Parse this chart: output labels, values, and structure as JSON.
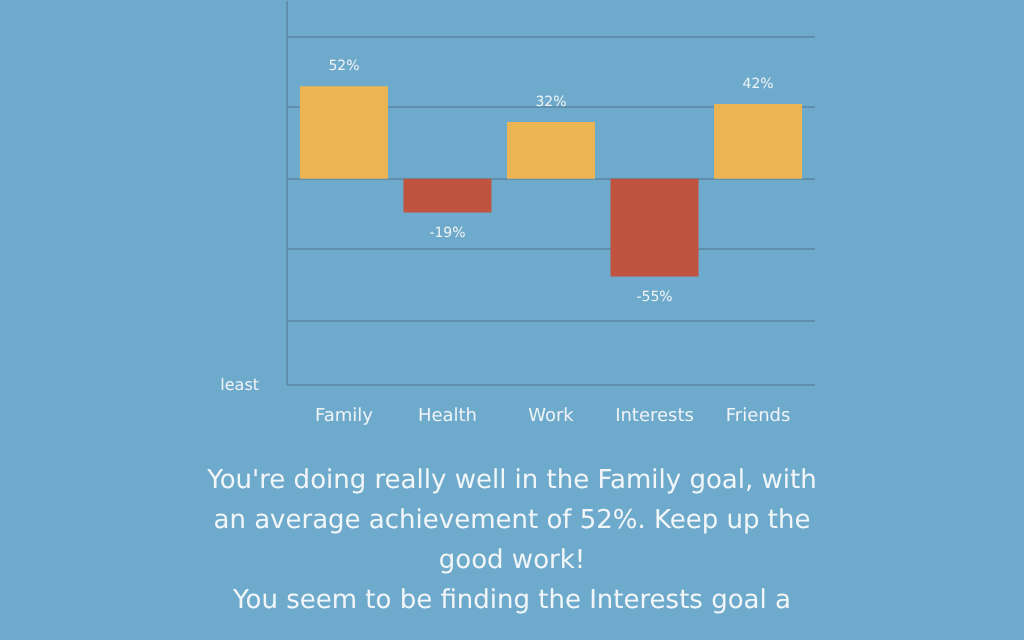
{
  "chart_data": {
    "type": "bar",
    "categories": [
      "Family",
      "Health",
      "Work",
      "Interests",
      "Friends"
    ],
    "values": [
      52,
      -19,
      32,
      -55,
      42
    ],
    "colors": [
      "#ecb553",
      "#c0533f",
      "#ecb553",
      "#c0533f",
      "#ecb553"
    ],
    "value_labels": [
      "52%",
      "-19%",
      "32%",
      "-55%",
      "42%"
    ],
    "ylim": [
      -116,
      100
    ],
    "yticks": [
      {
        "value": -80,
        "label": null
      },
      {
        "value": -40,
        "label": null
      },
      {
        "value": 0,
        "label": null
      },
      {
        "value": 40,
        "label": null
      },
      {
        "value": 80,
        "label": null
      }
    ],
    "grid": "y",
    "annotations": [
      "least",
      "You're doing really well in the Family goal, with an average achievement of 52%. Keep up the good work!",
      "You seem to be finding the Interests goal a"
    ]
  }
}
